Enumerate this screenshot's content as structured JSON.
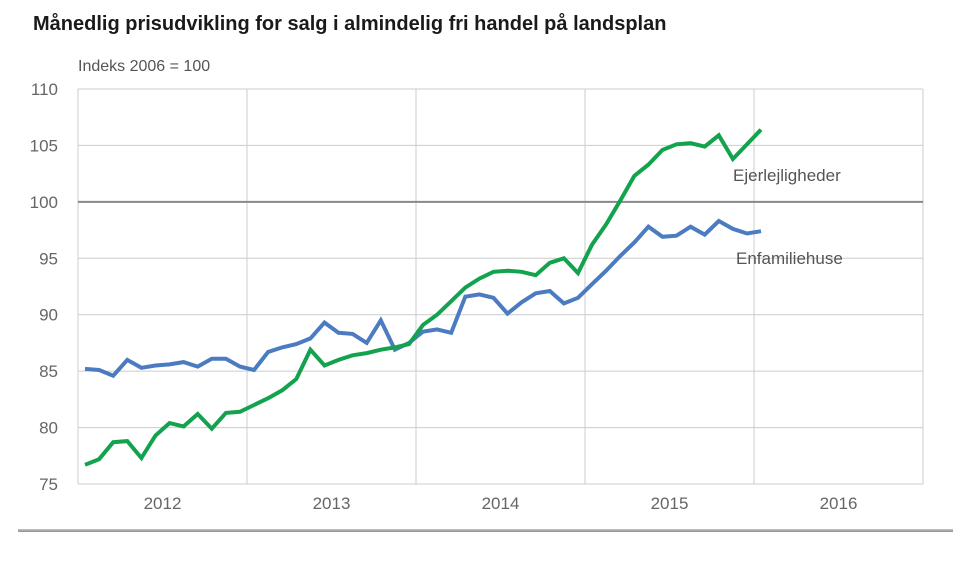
{
  "chart_data": {
    "type": "line",
    "title": "Månedlig prisudvikling for salg i almindelig fri handel på landsplan",
    "subtitle": "Indeks 2006 = 100",
    "x_tick_labels": [
      "2012",
      "2013",
      "2014",
      "2015",
      "2016"
    ],
    "y_ticks": [
      75,
      80,
      85,
      90,
      95,
      100,
      105,
      110
    ],
    "ylim": [
      75,
      110
    ],
    "x_range_months": [
      "2012-01",
      "2016-01"
    ],
    "reference_line_y": 100,
    "grid": "both",
    "legend_position": "inline-right-of-lines",
    "months": [
      "2012-01",
      "2012-02",
      "2012-03",
      "2012-04",
      "2012-05",
      "2012-06",
      "2012-07",
      "2012-08",
      "2012-09",
      "2012-10",
      "2012-11",
      "2012-12",
      "2013-01",
      "2013-02",
      "2013-03",
      "2013-04",
      "2013-05",
      "2013-06",
      "2013-07",
      "2013-08",
      "2013-09",
      "2013-10",
      "2013-11",
      "2013-12",
      "2014-01",
      "2014-02",
      "2014-03",
      "2014-04",
      "2014-05",
      "2014-06",
      "2014-07",
      "2014-08",
      "2014-09",
      "2014-10",
      "2014-11",
      "2014-12",
      "2015-01",
      "2015-02",
      "2015-03",
      "2015-04",
      "2015-05",
      "2015-06",
      "2015-07",
      "2015-08",
      "2015-09",
      "2015-10",
      "2015-11",
      "2015-12",
      "2016-01"
    ],
    "series": [
      {
        "name": "Enfamiliehuse",
        "color": "#4b7bc0",
        "values": [
          85.2,
          85.1,
          84.6,
          86.0,
          85.3,
          85.5,
          85.6,
          85.8,
          85.4,
          86.1,
          86.1,
          85.4,
          85.1,
          86.7,
          87.1,
          87.4,
          87.9,
          89.3,
          88.4,
          88.3,
          87.5,
          89.5,
          86.9,
          87.5,
          88.5,
          88.7,
          88.4,
          91.6,
          91.8,
          91.5,
          90.1,
          91.1,
          91.9,
          92.1,
          91.0,
          91.5,
          92.7,
          93.9,
          95.2,
          96.4,
          97.8,
          96.9,
          97.0,
          97.8,
          97.1,
          98.3,
          97.6,
          97.2,
          97.4
        ]
      },
      {
        "name": "Ejerlejligheder",
        "color": "#13a24d",
        "values": [
          76.7,
          77.2,
          78.7,
          78.8,
          77.3,
          79.3,
          80.4,
          80.1,
          81.2,
          79.9,
          81.3,
          81.4,
          82.0,
          82.6,
          83.3,
          84.3,
          86.9,
          85.5,
          86.0,
          86.4,
          86.6,
          86.9,
          87.1,
          87.4,
          89.1,
          90.0,
          91.2,
          92.4,
          93.2,
          93.8,
          93.9,
          93.8,
          93.5,
          94.6,
          95.0,
          93.7,
          96.2,
          98.0,
          100.1,
          102.3,
          103.3,
          104.6,
          105.1,
          105.2,
          104.9,
          105.9,
          103.8,
          105.1,
          106.4
        ]
      }
    ],
    "colors": {
      "background": "#ffffff",
      "gridline": "#cccccc",
      "reference_line": "#888888",
      "axis_text": "#666666",
      "title_text": "#1a1a1a",
      "label_text": "#555555",
      "divider": "#9a9a9a"
    }
  }
}
